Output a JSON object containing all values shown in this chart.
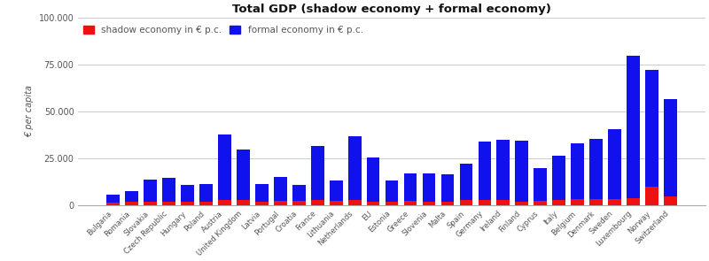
{
  "countries": [
    "Bulgaria",
    "Romania",
    "Slovakia",
    "Czech Republic",
    "Hungary",
    "Poland",
    "Austria",
    "United Kingdom",
    "Latvia",
    "Portugal",
    "Croatia",
    "France",
    "Lithuania",
    "Netherlands",
    "EU",
    "Estonia",
    "Greece",
    "Slovenia",
    "Malta",
    "Spain",
    "Germany",
    "Ireland",
    "Finland",
    "Cyprus",
    "Italy",
    "Belgium",
    "Denmark",
    "Sweden",
    "Luxembourg",
    "Norway",
    "Switzerland"
  ],
  "formal": [
    4000,
    5500,
    11500,
    12500,
    9000,
    9000,
    35000,
    27000,
    9000,
    13000,
    8500,
    29000,
    11000,
    34000,
    23500,
    11500,
    14500,
    15000,
    14500,
    19500,
    31500,
    32500,
    32500,
    17500,
    23500,
    30000,
    32500,
    37500,
    76000,
    62000,
    52000
  ],
  "shadow": [
    1500,
    1800,
    2000,
    2000,
    1800,
    2000,
    2500,
    2500,
    2000,
    2200,
    2200,
    2500,
    2200,
    2500,
    2000,
    1800,
    2200,
    2000,
    2000,
    2500,
    2500,
    2500,
    2000,
    2200,
    2800,
    3000,
    3000,
    3000,
    3500,
    10000,
    4500
  ],
  "shadow_color": "#ee1111",
  "formal_color": "#1111ee",
  "title": "Total GDP (shadow economy + formal economy)",
  "ylabel": "€ per capita",
  "legend_shadow": "shadow economy in € p.c.",
  "legend_formal": "formal economy in € p.c.",
  "yticks": [
    0,
    25000,
    50000,
    75000,
    100000
  ],
  "ytick_labels": [
    "0",
    "25.000",
    "50.000",
    "75.000",
    "100.000"
  ],
  "background_color": "#ffffff",
  "grid_color": "#cccccc"
}
